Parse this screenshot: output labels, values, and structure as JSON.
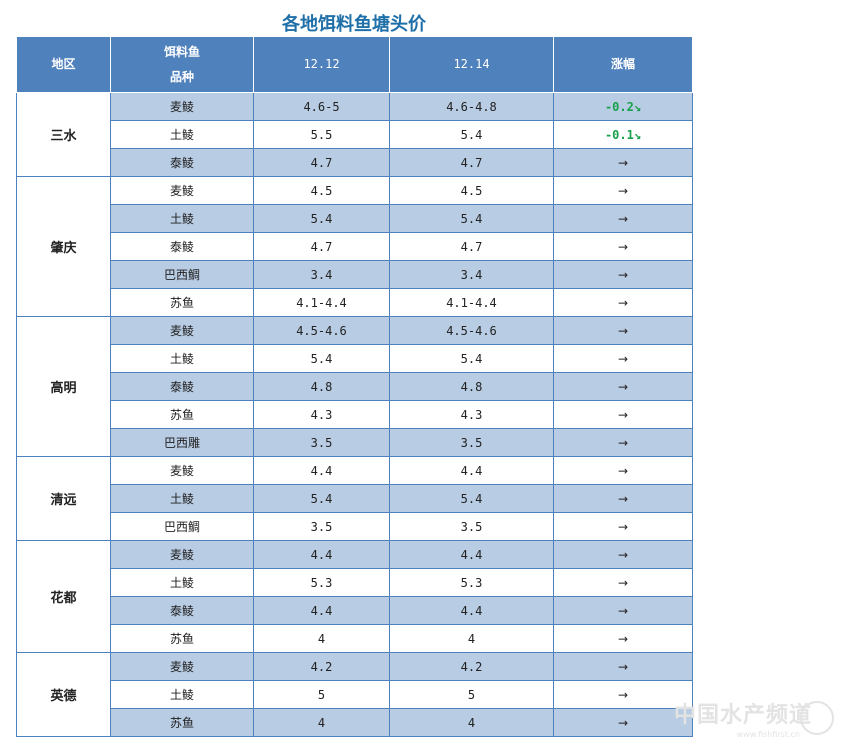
{
  "title": "各地饵料鱼塘头价",
  "header": {
    "region": "地区",
    "species_line1": "饵料鱼",
    "species_line2": "品种",
    "date1": "12.12",
    "date2": "12.14",
    "change": "涨幅"
  },
  "groups": [
    {
      "region": "三水",
      "rows": [
        {
          "species": "麦鲮",
          "d1": "4.6-5",
          "d2": "4.6-4.8",
          "change": "-0.2↘"
        },
        {
          "species": "土鲮",
          "d1": "5.5",
          "d2": "5.4",
          "change": "-0.1↘"
        },
        {
          "species": "泰鲮",
          "d1": "4.7",
          "d2": "4.7",
          "change": "→"
        }
      ]
    },
    {
      "region": "肇庆",
      "rows": [
        {
          "species": "麦鲮",
          "d1": "4.5",
          "d2": "4.5",
          "change": "→"
        },
        {
          "species": "土鲮",
          "d1": "5.4",
          "d2": "5.4",
          "change": "→"
        },
        {
          "species": "泰鲮",
          "d1": "4.7",
          "d2": "4.7",
          "change": "→"
        },
        {
          "species": "巴西鲷",
          "d1": "3.4",
          "d2": "3.4",
          "change": "→"
        },
        {
          "species": "苏鱼",
          "d1": "4.1-4.4",
          "d2": "4.1-4.4",
          "change": "→"
        }
      ]
    },
    {
      "region": "高明",
      "rows": [
        {
          "species": "麦鲮",
          "d1": "4.5-4.6",
          "d2": "4.5-4.6",
          "change": "→"
        },
        {
          "species": "土鲮",
          "d1": "5.4",
          "d2": "5.4",
          "change": "→"
        },
        {
          "species": "泰鲮",
          "d1": "4.8",
          "d2": "4.8",
          "change": "→"
        },
        {
          "species": "苏鱼",
          "d1": "4.3",
          "d2": "4.3",
          "change": "→"
        },
        {
          "species": "巴西雕",
          "d1": "3.5",
          "d2": "3.5",
          "change": "→"
        }
      ]
    },
    {
      "region": "清远",
      "rows": [
        {
          "species": "麦鲮",
          "d1": "4.4",
          "d2": "4.4",
          "change": "→"
        },
        {
          "species": "土鲮",
          "d1": "5.4",
          "d2": "5.4",
          "change": "→"
        },
        {
          "species": "巴西鲷",
          "d1": "3.5",
          "d2": "3.5",
          "change": "→"
        }
      ]
    },
    {
      "region": "花都",
      "rows": [
        {
          "species": "麦鲮",
          "d1": "4.4",
          "d2": "4.4",
          "change": "→"
        },
        {
          "species": "土鲮",
          "d1": "5.3",
          "d2": "5.3",
          "change": "→"
        },
        {
          "species": "泰鲮",
          "d1": "4.4",
          "d2": "4.4",
          "change": "→"
        },
        {
          "species": "苏鱼",
          "d1": "4",
          "d2": "4",
          "change": "→"
        }
      ]
    },
    {
      "region": "英德",
      "rows": [
        {
          "species": "麦鲮",
          "d1": "4.2",
          "d2": "4.2",
          "change": "→"
        },
        {
          "species": "土鲮",
          "d1": "5",
          "d2": "5",
          "change": "→"
        },
        {
          "species": "苏鱼",
          "d1": "4",
          "d2": "4",
          "change": "→"
        }
      ]
    }
  ],
  "watermark": {
    "text": "中国水产频道",
    "sub": "www.fishfirst.cn"
  },
  "colors": {
    "header_bg": "#4f81bd",
    "alt_row_bg": "#b8cce4",
    "title": "#1f6fa8",
    "down": "#18a14a"
  }
}
